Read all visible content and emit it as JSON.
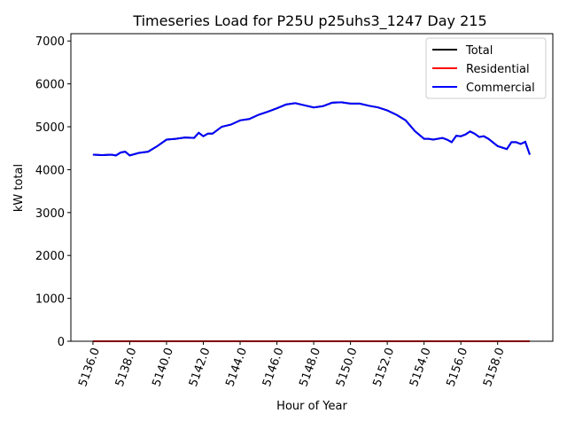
{
  "chart_data": {
    "type": "line",
    "title": "Timeseries Load for P25U p25uhs3_1247  Day 215",
    "xlabel": "Hour of Year",
    "ylabel": "kW total",
    "xlim": [
      5134.8,
      5161.0
    ],
    "ylim": [
      0,
      7170
    ],
    "xticks": [
      5136,
      5138,
      5140,
      5142,
      5144,
      5146,
      5148,
      5150,
      5152,
      5154,
      5156,
      5158
    ],
    "xtick_labels": [
      "5136.0",
      "5138.0",
      "5140.0",
      "5142.0",
      "5144.0",
      "5146.0",
      "5148.0",
      "5150.0",
      "5152.0",
      "5154.0",
      "5156.0",
      "5158.0"
    ],
    "yticks": [
      0,
      1000,
      2000,
      3000,
      4000,
      5000,
      6000,
      7000
    ],
    "ytick_labels": [
      "0",
      "1000",
      "2000",
      "3000",
      "4000",
      "5000",
      "6000",
      "7000"
    ],
    "legend_position": "top-right",
    "x": [
      5136,
      5136.5,
      5137,
      5137.25,
      5137.5,
      5137.75,
      5138,
      5138.5,
      5139,
      5139.5,
      5140,
      5140.5,
      5141,
      5141.5,
      5141.75,
      5142,
      5142.25,
      5142.5,
      5143,
      5143.5,
      5144,
      5144.5,
      5145,
      5145.5,
      5146,
      5146.5,
      5147,
      5147.5,
      5148,
      5148.5,
      5149,
      5149.5,
      5150,
      5150.5,
      5151,
      5151.5,
      5152,
      5152.5,
      5153,
      5153.5,
      5154,
      5154.25,
      5154.5,
      5155,
      5155.25,
      5155.5,
      5155.75,
      5156,
      5156.25,
      5156.5,
      5156.75,
      5157,
      5157.25,
      5157.5,
      5158,
      5158.5,
      5158.75,
      5159,
      5159.25,
      5159.5,
      5159.75
    ],
    "series": [
      {
        "name": "Total",
        "color": "#000000",
        "values": [
          4350,
          4340,
          4350,
          4330,
          4400,
          4420,
          4330,
          4390,
          4420,
          4550,
          4700,
          4720,
          4750,
          4740,
          4860,
          4780,
          4840,
          4840,
          5000,
          5050,
          5150,
          5180,
          5280,
          5350,
          5430,
          5520,
          5550,
          5500,
          5450,
          5480,
          5560,
          5570,
          5540,
          5540,
          5490,
          5450,
          5380,
          5280,
          5150,
          4900,
          4720,
          4720,
          4700,
          4740,
          4700,
          4640,
          4790,
          4780,
          4820,
          4890,
          4840,
          4760,
          4780,
          4720,
          4550,
          4480,
          4640,
          4640,
          4600,
          4650,
          4350
        ]
      },
      {
        "name": "Residential",
        "color": "#ff0000",
        "values": [
          0,
          0,
          0,
          0,
          0,
          0,
          0,
          0,
          0,
          0,
          0,
          0,
          0,
          0,
          0,
          0,
          0,
          0,
          0,
          0,
          0,
          0,
          0,
          0,
          0,
          0,
          0,
          0,
          0,
          0,
          0,
          0,
          0,
          0,
          0,
          0,
          0,
          0,
          0,
          0,
          0,
          0,
          0,
          0,
          0,
          0,
          0,
          0,
          0,
          0,
          0,
          0,
          0,
          0,
          0,
          0,
          0,
          0,
          0,
          0,
          0
        ]
      },
      {
        "name": "Commercial",
        "color": "#0000ff",
        "values": [
          4350,
          4340,
          4350,
          4330,
          4400,
          4420,
          4330,
          4390,
          4420,
          4550,
          4700,
          4720,
          4750,
          4740,
          4860,
          4780,
          4840,
          4840,
          5000,
          5050,
          5150,
          5180,
          5280,
          5350,
          5430,
          5520,
          5550,
          5500,
          5450,
          5480,
          5560,
          5570,
          5540,
          5540,
          5490,
          5450,
          5380,
          5280,
          5150,
          4900,
          4720,
          4720,
          4700,
          4740,
          4700,
          4640,
          4790,
          4780,
          4820,
          4890,
          4840,
          4760,
          4780,
          4720,
          4550,
          4480,
          4640,
          4640,
          4600,
          4650,
          4350
        ]
      }
    ]
  }
}
